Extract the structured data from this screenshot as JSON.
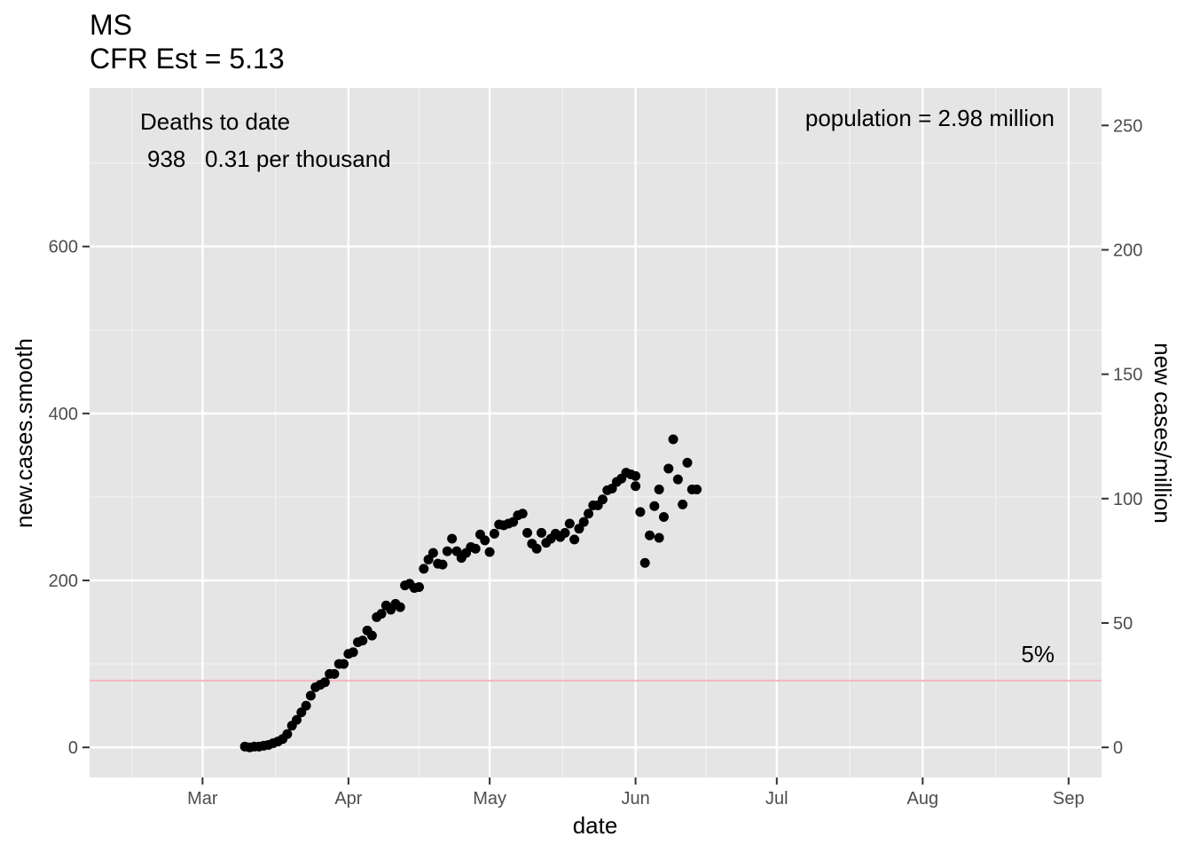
{
  "chart_data": {
    "type": "scatter",
    "title": "MS",
    "subtitle": "CFR Est = 5.13",
    "xlabel": "date",
    "ylabel": "new.cases.smooth",
    "y2label": "new cases/million",
    "x_tick_labels": [
      "Mar",
      "Apr",
      "May",
      "Jun",
      "Jul",
      "Aug",
      "Sep"
    ],
    "x_tick_dates": [
      "2020-03-01",
      "2020-04-01",
      "2020-05-01",
      "2020-06-01",
      "2020-07-01",
      "2020-08-01",
      "2020-09-01"
    ],
    "xlim": [
      "2020-02-06",
      "2020-09-08"
    ],
    "ylim": [
      -36,
      790
    ],
    "y_ticks": [
      0,
      200,
      400,
      600
    ],
    "y2_ticks": [
      0,
      50,
      100,
      150,
      200,
      250
    ],
    "y2_scale_per_million": 2.98,
    "grid": true,
    "annotations": {
      "deaths_label": "Deaths to date",
      "deaths_value": "938   0.31 per thousand",
      "population": "population = 2.98 million",
      "threshold_label": "5%"
    },
    "reference_line": {
      "y": 80,
      "color": "#f4b6c2"
    },
    "series": [
      {
        "color": "#000000",
        "points": [
          [
            "2020-03-10",
            1
          ],
          [
            "2020-03-11",
            0
          ],
          [
            "2020-03-12",
            1
          ],
          [
            "2020-03-13",
            1
          ],
          [
            "2020-03-14",
            2
          ],
          [
            "2020-03-15",
            3
          ],
          [
            "2020-03-16",
            5
          ],
          [
            "2020-03-17",
            7
          ],
          [
            "2020-03-18",
            10
          ],
          [
            "2020-03-19",
            16
          ],
          [
            "2020-03-20",
            26
          ],
          [
            "2020-03-21",
            33
          ],
          [
            "2020-03-22",
            42
          ],
          [
            "2020-03-23",
            50
          ],
          [
            "2020-03-24",
            62
          ],
          [
            "2020-03-25",
            72
          ],
          [
            "2020-03-26",
            75
          ],
          [
            "2020-03-27",
            78
          ],
          [
            "2020-03-28",
            88
          ],
          [
            "2020-03-29",
            88
          ],
          [
            "2020-03-30",
            100
          ],
          [
            "2020-03-31",
            100
          ],
          [
            "2020-04-01",
            112
          ],
          [
            "2020-04-02",
            114
          ],
          [
            "2020-04-03",
            126
          ],
          [
            "2020-04-04",
            128
          ],
          [
            "2020-04-05",
            140
          ],
          [
            "2020-04-06",
            134
          ],
          [
            "2020-04-07",
            156
          ],
          [
            "2020-04-08",
            160
          ],
          [
            "2020-04-09",
            170
          ],
          [
            "2020-04-10",
            165
          ],
          [
            "2020-04-11",
            172
          ],
          [
            "2020-04-12",
            168
          ],
          [
            "2020-04-13",
            194
          ],
          [
            "2020-04-14",
            196
          ],
          [
            "2020-04-15",
            191
          ],
          [
            "2020-04-16",
            192
          ],
          [
            "2020-04-17",
            214
          ],
          [
            "2020-04-18",
            225
          ],
          [
            "2020-04-19",
            233
          ],
          [
            "2020-04-20",
            220
          ],
          [
            "2020-04-21",
            219
          ],
          [
            "2020-04-22",
            235
          ],
          [
            "2020-04-23",
            250
          ],
          [
            "2020-04-24",
            235
          ],
          [
            "2020-04-25",
            227
          ],
          [
            "2020-04-26",
            233
          ],
          [
            "2020-04-27",
            240
          ],
          [
            "2020-04-28",
            238
          ],
          [
            "2020-04-29",
            255
          ],
          [
            "2020-04-30",
            248
          ],
          [
            "2020-05-01",
            234
          ],
          [
            "2020-05-02",
            256
          ],
          [
            "2020-05-03",
            267
          ],
          [
            "2020-05-04",
            266
          ],
          [
            "2020-05-05",
            268
          ],
          [
            "2020-05-06",
            270
          ],
          [
            "2020-05-07",
            278
          ],
          [
            "2020-05-08",
            280
          ],
          [
            "2020-05-09",
            257
          ],
          [
            "2020-05-10",
            244
          ],
          [
            "2020-05-11",
            238
          ],
          [
            "2020-05-12",
            257
          ],
          [
            "2020-05-13",
            245
          ],
          [
            "2020-05-14",
            250
          ],
          [
            "2020-05-15",
            256
          ],
          [
            "2020-05-16",
            252
          ],
          [
            "2020-05-17",
            257
          ],
          [
            "2020-05-18",
            268
          ],
          [
            "2020-05-19",
            249
          ],
          [
            "2020-05-20",
            262
          ],
          [
            "2020-05-21",
            270
          ],
          [
            "2020-05-22",
            280
          ],
          [
            "2020-05-23",
            290
          ],
          [
            "2020-05-24",
            290
          ],
          [
            "2020-05-25",
            297
          ],
          [
            "2020-05-26",
            308
          ],
          [
            "2020-05-27",
            310
          ],
          [
            "2020-05-28",
            318
          ],
          [
            "2020-05-29",
            322
          ],
          [
            "2020-05-30",
            329
          ],
          [
            "2020-05-31",
            327
          ],
          [
            "2020-06-01",
            325
          ],
          [
            "2020-06-01",
            313
          ],
          [
            "2020-06-02",
            282
          ],
          [
            "2020-06-03",
            221
          ],
          [
            "2020-06-04",
            254
          ],
          [
            "2020-06-05",
            289
          ],
          [
            "2020-06-06",
            251
          ],
          [
            "2020-06-06",
            309
          ],
          [
            "2020-06-07",
            276
          ],
          [
            "2020-06-08",
            334
          ],
          [
            "2020-06-09",
            369
          ],
          [
            "2020-06-10",
            321
          ],
          [
            "2020-06-11",
            291
          ],
          [
            "2020-06-12",
            341
          ],
          [
            "2020-06-13",
            309
          ],
          [
            "2020-06-14",
            309
          ]
        ]
      }
    ]
  }
}
